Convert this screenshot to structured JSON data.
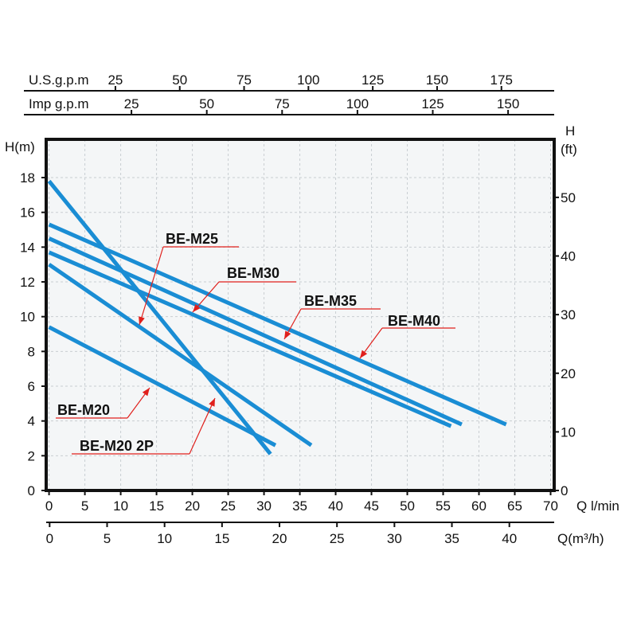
{
  "chart_data": {
    "type": "line",
    "xlabel": "Q l/min",
    "ylabel": "H(m)",
    "y2label": [
      "H",
      "(ft)"
    ],
    "xlim": [
      -0.4,
      70.5
    ],
    "xticks": [
      0,
      5,
      10,
      15,
      20,
      25,
      30,
      35,
      40,
      45,
      50,
      55,
      60,
      65,
      70
    ],
    "ylim": [
      0,
      20.2
    ],
    "yticks": [
      0,
      2,
      4,
      6,
      8,
      10,
      12,
      14,
      16,
      18
    ],
    "y2lim": [
      0,
      59.9
    ],
    "y2ticks": [
      0,
      10,
      20,
      30,
      40,
      50
    ],
    "extra_x_axes": [
      {
        "label": "Q(m³/h)",
        "position": "bottom",
        "lim": [
          -0.3,
          43.9
        ],
        "ticks": [
          0,
          5,
          10,
          15,
          20,
          25,
          30,
          35,
          40
        ]
      },
      {
        "label": "Imp g.p.m",
        "position": "top",
        "lim": [
          -3.3,
          165.3
        ],
        "ticks": [
          25,
          50,
          75,
          100,
          125,
          150
        ]
      },
      {
        "label": "U.S.g.p.m",
        "position": "top",
        "lim": [
          -1.9,
          195.5
        ],
        "ticks": [
          25,
          50,
          75,
          100,
          125,
          150,
          175
        ]
      }
    ],
    "grid": true,
    "annotation_color": "#e0201c",
    "series": [
      {
        "name": "BE-M20",
        "color": "#1a8dd4",
        "x": [
          0,
          31.6
        ],
        "values": [
          9.4,
          2.6
        ]
      },
      {
        "name": "BE-M20 2P",
        "color": "#1a8dd4",
        "x": [
          0,
          30.9
        ],
        "values": [
          17.8,
          2.1
        ]
      },
      {
        "name": "BE-M25",
        "color": "#1a8dd4",
        "x": [
          0,
          36.6
        ],
        "values": [
          13.0,
          2.6
        ]
      },
      {
        "name": "BE-M30",
        "color": "#1a8dd4",
        "x": [
          0,
          56.1
        ],
        "values": [
          13.7,
          3.7
        ]
      },
      {
        "name": "BE-M35",
        "color": "#1a8dd4",
        "x": [
          0,
          57.6
        ],
        "values": [
          14.5,
          3.8
        ]
      },
      {
        "name": "BE-M40",
        "color": "#1a8dd4",
        "x": [
          0,
          63.8
        ],
        "values": [
          15.3,
          3.8
        ]
      }
    ]
  }
}
